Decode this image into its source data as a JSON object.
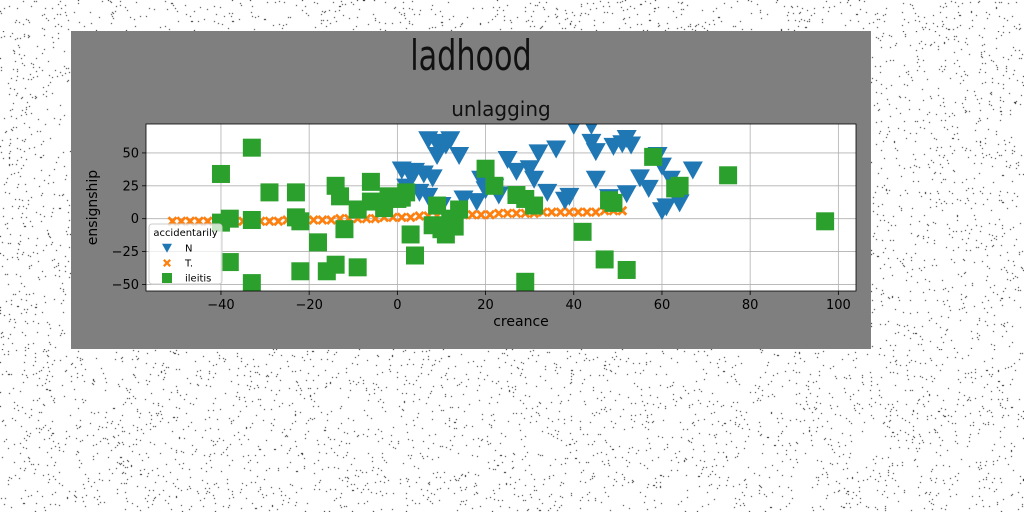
{
  "figure": {
    "suptitle": "ladhood",
    "background": "#7f7f7f"
  },
  "chart_data": {
    "type": "scatter",
    "title": "unlagging",
    "xlabel": "creance",
    "ylabel": "ensignship",
    "xlim": [
      -57,
      104
    ],
    "ylim": [
      -55,
      72
    ],
    "xticks": [
      -40,
      -20,
      0,
      20,
      40,
      60,
      80,
      100
    ],
    "yticks": [
      -50,
      -25,
      0,
      25,
      50
    ],
    "grid": true,
    "legend": {
      "title": "accidentarily",
      "placement": "lower-left"
    },
    "series": [
      {
        "name": "N",
        "marker": "triangle-down",
        "color": "#1f77b4",
        "points": [
          [
            7,
            60
          ],
          [
            9,
            57
          ],
          [
            10,
            58
          ],
          [
            12,
            60
          ],
          [
            11,
            56
          ],
          [
            14,
            48
          ],
          [
            9,
            48
          ],
          [
            1,
            37
          ],
          [
            4,
            36
          ],
          [
            6,
            34
          ],
          [
            8,
            31
          ],
          [
            3,
            33
          ],
          [
            2,
            24
          ],
          [
            5,
            20
          ],
          [
            7,
            17
          ],
          [
            15,
            15
          ],
          [
            18,
            13
          ],
          [
            19,
            30
          ],
          [
            20,
            22
          ],
          [
            22,
            24
          ],
          [
            23,
            18
          ],
          [
            25,
            45
          ],
          [
            27,
            36
          ],
          [
            30,
            38
          ],
          [
            31,
            30
          ],
          [
            32,
            50
          ],
          [
            34,
            20
          ],
          [
            36,
            53
          ],
          [
            38,
            14
          ],
          [
            39,
            17
          ],
          [
            40,
            71
          ],
          [
            44,
            58
          ],
          [
            44,
            71
          ],
          [
            45,
            51
          ],
          [
            45,
            30
          ],
          [
            48,
            16
          ],
          [
            49,
            55
          ],
          [
            51,
            57
          ],
          [
            52,
            61
          ],
          [
            53,
            56
          ],
          [
            52,
            19
          ],
          [
            55,
            31
          ],
          [
            57,
            23
          ],
          [
            59,
            48
          ],
          [
            60,
            40
          ],
          [
            60,
            6
          ],
          [
            61,
            9
          ],
          [
            62,
            30
          ],
          [
            64,
            12
          ],
          [
            67,
            37
          ],
          [
            10,
            10
          ]
        ]
      },
      {
        "name": "T.",
        "marker": "x",
        "color": "#ff7f0e",
        "points": [
          [
            -51,
            -2
          ],
          [
            -49,
            -2
          ],
          [
            -47,
            -2
          ],
          [
            -45,
            -2
          ],
          [
            -43,
            -2
          ],
          [
            -41,
            -2
          ],
          [
            -39,
            -2
          ],
          [
            -37,
            -2
          ],
          [
            -35,
            -2
          ],
          [
            -33,
            -2
          ],
          [
            -31,
            -2
          ],
          [
            -29,
            -2
          ],
          [
            -27,
            -2
          ],
          [
            -25,
            -1
          ],
          [
            -23,
            -1
          ],
          [
            -21,
            -1
          ],
          [
            -19,
            -1
          ],
          [
            -17,
            -1
          ],
          [
            -15,
            -1
          ],
          [
            -13,
            0
          ],
          [
            -11,
            0
          ],
          [
            -9,
            0
          ],
          [
            -7,
            0
          ],
          [
            -5,
            0
          ],
          [
            -3,
            1
          ],
          [
            -1,
            1
          ],
          [
            1,
            1
          ],
          [
            3,
            1
          ],
          [
            5,
            2
          ],
          [
            7,
            2
          ],
          [
            9,
            2
          ],
          [
            11,
            2
          ],
          [
            13,
            2
          ],
          [
            15,
            3
          ],
          [
            17,
            3
          ],
          [
            19,
            3
          ],
          [
            21,
            3
          ],
          [
            23,
            4
          ],
          [
            25,
            4
          ],
          [
            27,
            4
          ],
          [
            29,
            4
          ],
          [
            31,
            4
          ],
          [
            33,
            5
          ],
          [
            35,
            5
          ],
          [
            37,
            5
          ],
          [
            39,
            5
          ],
          [
            41,
            5
          ],
          [
            43,
            5
          ],
          [
            45,
            5
          ],
          [
            47,
            6
          ],
          [
            49,
            6
          ],
          [
            51,
            6
          ]
        ]
      },
      {
        "name": "ileitis",
        "marker": "square",
        "color": "#2ca02c",
        "points": [
          [
            -40,
            34
          ],
          [
            -40,
            -3
          ],
          [
            -38,
            0
          ],
          [
            -38,
            -33
          ],
          [
            -33,
            54
          ],
          [
            -33,
            -1
          ],
          [
            -33,
            -49
          ],
          [
            -29,
            20
          ],
          [
            -23,
            20
          ],
          [
            -23,
            1
          ],
          [
            -22,
            -2
          ],
          [
            -22,
            -40
          ],
          [
            -18,
            -18
          ],
          [
            -16,
            -40
          ],
          [
            -14,
            -35
          ],
          [
            -14,
            25
          ],
          [
            -13,
            17
          ],
          [
            -12,
            -8
          ],
          [
            -9,
            7
          ],
          [
            -9,
            -37
          ],
          [
            -6,
            28
          ],
          [
            -6,
            13
          ],
          [
            -3,
            8
          ],
          [
            -2,
            17
          ],
          [
            0,
            15
          ],
          [
            1,
            16
          ],
          [
            2,
            20
          ],
          [
            3,
            -12
          ],
          [
            4,
            -28
          ],
          [
            8,
            -5
          ],
          [
            9,
            10
          ],
          [
            10,
            -8
          ],
          [
            11,
            -12
          ],
          [
            12,
            0
          ],
          [
            13,
            -6
          ],
          [
            14,
            7
          ],
          [
            20,
            38
          ],
          [
            22,
            25
          ],
          [
            27,
            18
          ],
          [
            29,
            15
          ],
          [
            29,
            -48
          ],
          [
            31,
            10
          ],
          [
            42,
            -10
          ],
          [
            47,
            -31
          ],
          [
            48,
            14
          ],
          [
            49,
            12
          ],
          [
            52,
            -39
          ],
          [
            58,
            47
          ],
          [
            63,
            23
          ],
          [
            64,
            25
          ],
          [
            75,
            33
          ],
          [
            97,
            -2
          ]
        ]
      }
    ]
  }
}
